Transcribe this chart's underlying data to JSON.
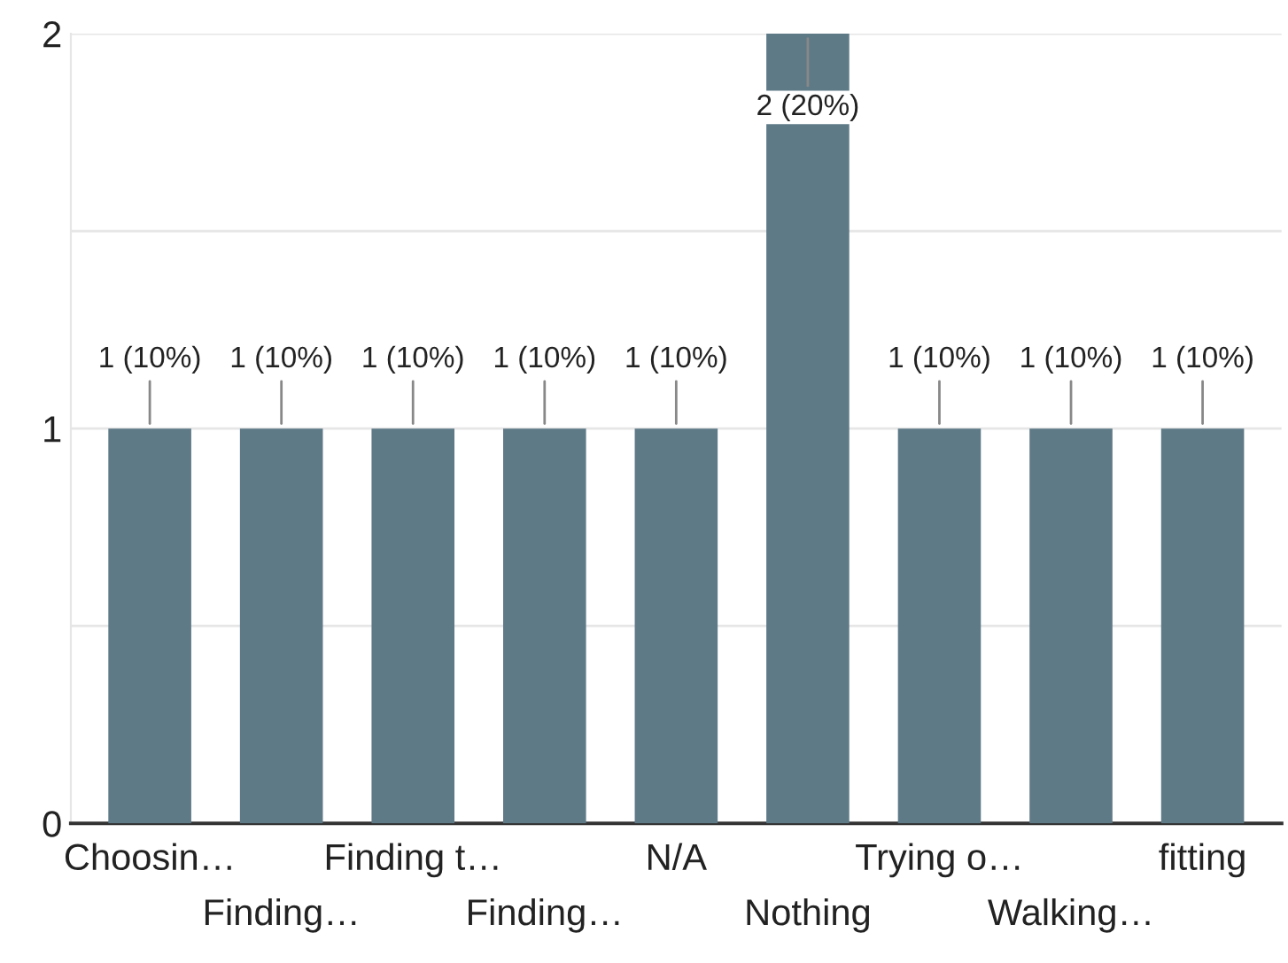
{
  "chart_data": {
    "type": "bar",
    "categories": [
      "Choosin…",
      "Finding…",
      "Finding t…",
      "Finding…",
      "N/A",
      "Nothing",
      "Trying o…",
      "Walking…",
      "fitting"
    ],
    "values": [
      1,
      1,
      1,
      1,
      1,
      2,
      1,
      1,
      1
    ],
    "value_labels": [
      "1 (10%)",
      "1 (10%)",
      "1 (10%)",
      "1 (10%)",
      "1 (10%)",
      "2 (20%)",
      "1 (10%)",
      "1 (10%)",
      "1 (10%)"
    ],
    "color": "#5e7a87",
    "ylim": [
      0,
      2
    ],
    "yticks": [
      0,
      {
        "value": 0.5,
        "label": null
      },
      1,
      {
        "value": 1.5,
        "label": null
      },
      2
    ],
    "grid": "y"
  }
}
